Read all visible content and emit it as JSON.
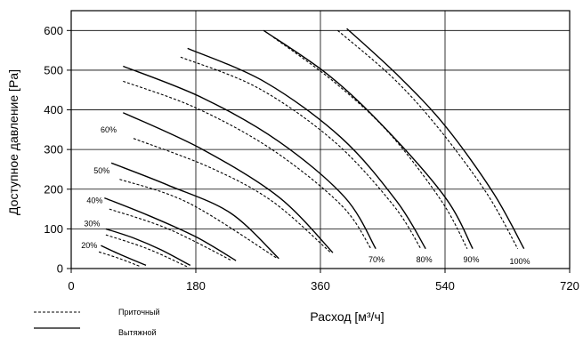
{
  "chart_data": {
    "type": "line",
    "xlabel": "Расход [м³/ч]",
    "ylabel": "Доступное давление [Pa]",
    "xlim": [
      0,
      720
    ],
    "ylim": [
      0,
      650
    ],
    "x_ticks": [
      "0",
      "180",
      "360",
      "540",
      "720"
    ],
    "y_ticks": [
      "0",
      "100",
      "200",
      "300",
      "400",
      "500",
      "600"
    ],
    "legend": [
      {
        "name": "Приточный",
        "style": "dashed"
      },
      {
        "name": "Вытяжной",
        "style": "solid"
      }
    ],
    "series": [
      {
        "name": "Вытяжной",
        "style": "solid",
        "x": [
          43,
          70,
          108
        ],
        "y": [
          58,
          36,
          8
        ]
      },
      {
        "name": "Вытяжной",
        "style": "solid",
        "x": [
          50,
          90,
          130,
          172
        ],
        "y": [
          100,
          77,
          47,
          8
        ]
      },
      {
        "name": "Вытяжной",
        "style": "solid",
        "x": [
          48,
          110,
          180,
          238
        ],
        "y": [
          178,
          135,
          80,
          20
        ]
      },
      {
        "name": "Вытяжной",
        "style": "solid",
        "x": [
          58,
          140,
          230,
          300
        ],
        "y": [
          266,
          210,
          140,
          25
        ]
      },
      {
        "name": "Вытяжной",
        "style": "solid",
        "x": [
          75,
          190,
          300,
          378
        ],
        "y": [
          393,
          300,
          180,
          40
        ]
      },
      {
        "name": "Вытяжной",
        "style": "solid",
        "x": [
          75,
          190,
          300,
          395,
          440
        ],
        "y": [
          510,
          430,
          320,
          180,
          50
        ]
      },
      {
        "name": "Вытяжной",
        "style": "solid",
        "x": [
          168,
          280,
          390,
          470,
          512
        ],
        "y": [
          555,
          470,
          330,
          170,
          50
        ]
      },
      {
        "name": "Вытяжной",
        "style": "solid",
        "x": [
          278,
          370,
          450,
          540,
          580
        ],
        "y": [
          600,
          490,
          360,
          180,
          50
        ]
      },
      {
        "name": "Вытяжной",
        "style": "solid",
        "x": [
          398,
          470,
          540,
          610,
          654
        ],
        "y": [
          605,
          490,
          360,
          190,
          50
        ]
      },
      {
        "name": "Приточный",
        "style": "dashed",
        "x": [
          40,
          70,
          100
        ],
        "y": [
          42,
          25,
          5
        ]
      },
      {
        "name": "Приточный",
        "style": "dashed",
        "x": [
          50,
          110,
          167
        ],
        "y": [
          85,
          50,
          5
        ]
      },
      {
        "name": "Приточный",
        "style": "dashed",
        "x": [
          55,
          140,
          232
        ],
        "y": [
          150,
          100,
          20
        ]
      },
      {
        "name": "Приточный",
        "style": "dashed",
        "x": [
          70,
          170,
          298
        ],
        "y": [
          225,
          165,
          25
        ]
      },
      {
        "name": "Приточный",
        "style": "dashed",
        "x": [
          90,
          200,
          290,
          375
        ],
        "y": [
          328,
          255,
          170,
          40
        ]
      },
      {
        "name": "Приточный",
        "style": "dashed",
        "x": [
          75,
          180,
          290,
          390,
          433
        ],
        "y": [
          472,
          405,
          300,
          160,
          50
        ]
      },
      {
        "name": "Приточный",
        "style": "dashed",
        "x": [
          158,
          270,
          380,
          465,
          505
        ],
        "y": [
          533,
          455,
          320,
          160,
          50
        ]
      },
      {
        "name": "Приточный",
        "style": "dashed",
        "x": [
          292,
          380,
          460,
          535,
          572
        ],
        "y": [
          583,
          470,
          340,
          170,
          50
        ]
      },
      {
        "name": "Приточный",
        "style": "dashed",
        "x": [
          385,
          465,
          530,
          600,
          645
        ],
        "y": [
          600,
          480,
          355,
          190,
          50
        ]
      }
    ],
    "annotations": [
      {
        "text": "20%",
        "x": 26,
        "y": 58
      },
      {
        "text": "30%",
        "x": 30,
        "y": 113
      },
      {
        "text": "40%",
        "x": 34,
        "y": 172
      },
      {
        "text": "50%",
        "x": 44,
        "y": 247
      },
      {
        "text": "60%",
        "x": 54,
        "y": 350
      },
      {
        "text": "70%",
        "x": 441,
        "y": 22
      },
      {
        "text": "80%",
        "x": 510,
        "y": 22
      },
      {
        "text": "90%",
        "x": 578,
        "y": 22
      },
      {
        "text": "100%",
        "x": 648,
        "y": 18
      }
    ]
  }
}
